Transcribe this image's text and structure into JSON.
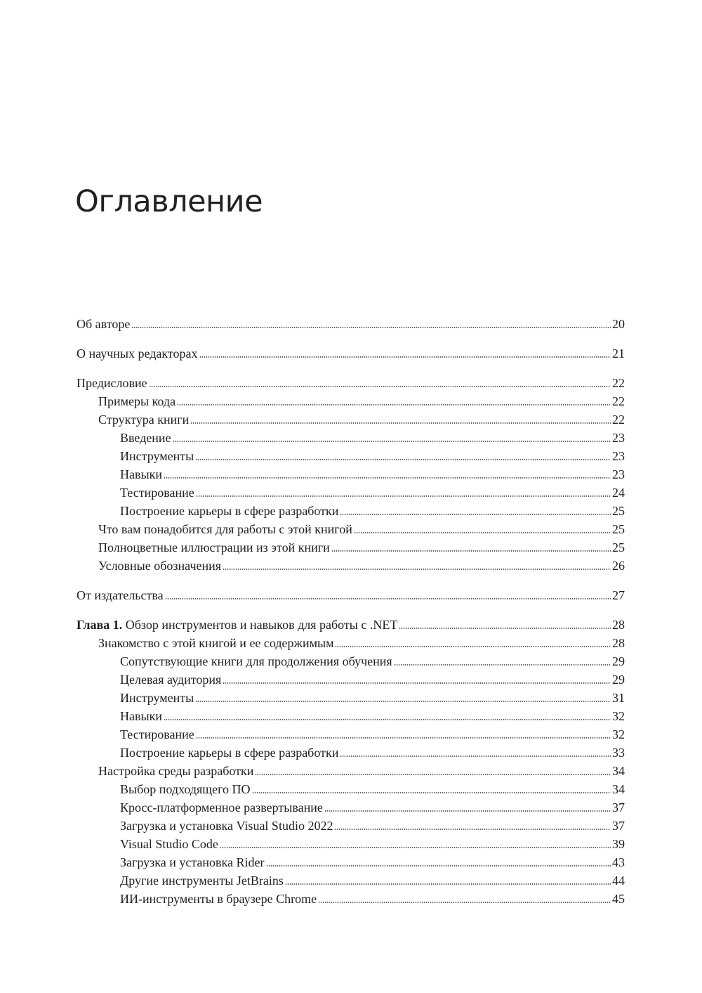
{
  "title": "Оглавление",
  "groups": [
    {
      "entries": [
        {
          "level": 0,
          "label": "Об авторе",
          "page": "20"
        }
      ]
    },
    {
      "entries": [
        {
          "level": 0,
          "label": "О научных редакторах",
          "page": "21"
        }
      ]
    },
    {
      "entries": [
        {
          "level": 0,
          "label": "Предисловие",
          "page": "22"
        },
        {
          "level": 1,
          "label": "Примеры кода",
          "page": "22"
        },
        {
          "level": 1,
          "label": "Структура книги",
          "page": "22"
        },
        {
          "level": 2,
          "label": "Введение",
          "page": "23"
        },
        {
          "level": 2,
          "label": "Инструменты",
          "page": "23"
        },
        {
          "level": 2,
          "label": "Навыки",
          "page": "23"
        },
        {
          "level": 2,
          "label": "Тестирование",
          "page": "24"
        },
        {
          "level": 2,
          "label": "Построение карьеры в сфере разработки",
          "page": "25"
        },
        {
          "level": 1,
          "label": "Что вам понадобится для работы с этой книгой",
          "page": "25"
        },
        {
          "level": 1,
          "label": "Полноцветные иллюстрации из этой книги",
          "page": "25"
        },
        {
          "level": 1,
          "label": "Условные обозначения",
          "page": "26"
        }
      ]
    },
    {
      "entries": [
        {
          "level": 0,
          "label": "От издательства",
          "page": "27"
        }
      ]
    },
    {
      "entries": [
        {
          "level": 0,
          "prefix": "Глава 1.",
          "label": " Обзор инструментов и навыков для работы с .NET",
          "page": "28"
        },
        {
          "level": 1,
          "label": "Знакомство с этой книгой и ее содержимым",
          "page": "28"
        },
        {
          "level": 2,
          "label": "Сопутствующие книги для продолжения обучения",
          "page": "29"
        },
        {
          "level": 2,
          "label": "Целевая аудитория",
          "page": "29"
        },
        {
          "level": 2,
          "label": "Инструменты",
          "page": "31"
        },
        {
          "level": 2,
          "label": "Навыки",
          "page": "32"
        },
        {
          "level": 2,
          "label": "Тестирование",
          "page": "32"
        },
        {
          "level": 2,
          "label": "Построение карьеры в сфере разработки",
          "page": "33"
        },
        {
          "level": 1,
          "label": "Настройка среды разработки",
          "page": "34"
        },
        {
          "level": 2,
          "label": "Выбор подходящего ПО",
          "page": "34"
        },
        {
          "level": 2,
          "label": "Кросс-платформенное развертывание",
          "page": "37"
        },
        {
          "level": 2,
          "label": "Загрузка и установка Visual Studio 2022",
          "page": "37"
        },
        {
          "level": 2,
          "label": "Visual Studio Code",
          "page": "39"
        },
        {
          "level": 2,
          "label": "Загрузка и установка Rider",
          "page": "43"
        },
        {
          "level": 2,
          "label": "Другие инструменты JetBrains",
          "page": "44"
        },
        {
          "level": 2,
          "label": "ИИ-инструменты в браузере Chrome",
          "page": "45"
        }
      ]
    }
  ]
}
